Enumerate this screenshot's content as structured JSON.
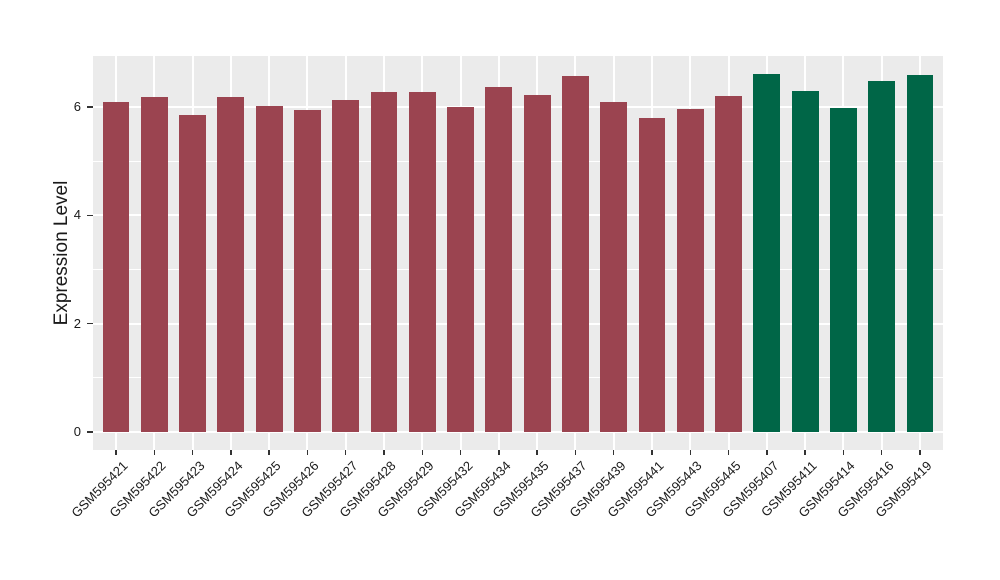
{
  "chart_data": {
    "type": "bar",
    "title": "",
    "xlabel": "",
    "ylabel": "Expression Level",
    "ylim": [
      -0.33,
      6.94
    ],
    "yticks": [
      0,
      2,
      4,
      6
    ],
    "yticks_minor": [
      1,
      3,
      5
    ],
    "grid": true,
    "legend": "none",
    "panel_bg": "#EBEBEB",
    "grid_color": "#FFFFFF",
    "tick_color": "#333333",
    "text_color": "#1A1A1A",
    "bar_width_fraction": 0.7,
    "group_colors": {
      "red": "#9B4450",
      "green": "#006647"
    },
    "categories": [
      "GSM595421",
      "GSM595422",
      "GSM595423",
      "GSM595424",
      "GSM595425",
      "GSM595426",
      "GSM595427",
      "GSM595428",
      "GSM595429",
      "GSM595432",
      "GSM595434",
      "GSM595435",
      "GSM595437",
      "GSM595439",
      "GSM595441",
      "GSM595443",
      "GSM595445",
      "GSM595407",
      "GSM595411",
      "GSM595414",
      "GSM595416",
      "GSM595419"
    ],
    "values": [
      6.1,
      6.18,
      5.85,
      6.18,
      6.01,
      5.94,
      6.12,
      6.28,
      6.28,
      6.0,
      6.36,
      6.22,
      6.58,
      6.09,
      5.8,
      5.97,
      6.2,
      6.6,
      6.29,
      5.98,
      6.48,
      6.59
    ],
    "bar_groups": [
      "red",
      "red",
      "red",
      "red",
      "red",
      "red",
      "red",
      "red",
      "red",
      "red",
      "red",
      "red",
      "red",
      "red",
      "red",
      "red",
      "red",
      "green",
      "green",
      "green",
      "green",
      "green"
    ]
  }
}
